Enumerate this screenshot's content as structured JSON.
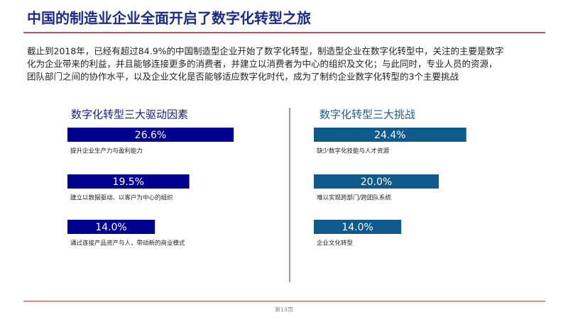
{
  "header": {
    "title": "中国的制造业企业全面开启了数字化转型之旅"
  },
  "paragraph": [
    "截止到2018年，已经有超过84.9%的中国制造型企业开始了数字化转型，制造型企业在数字化转型中，关注的主要是数字",
    "化为企业带来的利益，并且能够连接更多的消费者，并建立以消费者为中心的组织及文化；与此同时，专业人员的资源，",
    "团队部门之间的协作水平，以及企业文化是否能够适应数字化时代，成为了制约企业数字化转型的3个主要挑战"
  ],
  "chart_data": [
    {
      "type": "bar",
      "title": "数字化转型三大驱动因素",
      "color": "#000090",
      "categories": [
        "提升企业生产力与盈利能力",
        "建立以数据驱动、以客户为中心的组织",
        "通过连接产品资产与人，带动新的商业模式"
      ],
      "values": [
        26.6,
        19.5,
        14.0
      ],
      "value_labels": [
        "26.6%",
        "19.5%",
        "14.0%"
      ]
    },
    {
      "type": "bar",
      "title": "数字化转型三大挑战",
      "color": "#0e5a8a",
      "categories": [
        "缺少数字化技能与人才资源",
        "难以实现跨部门/跨团队系统",
        "企业文化转型"
      ],
      "values": [
        24.4,
        20.0,
        14.0
      ],
      "value_labels": [
        "24.4%",
        "20.0%",
        "14.0%"
      ]
    }
  ],
  "footer": {
    "page": "第13页"
  }
}
